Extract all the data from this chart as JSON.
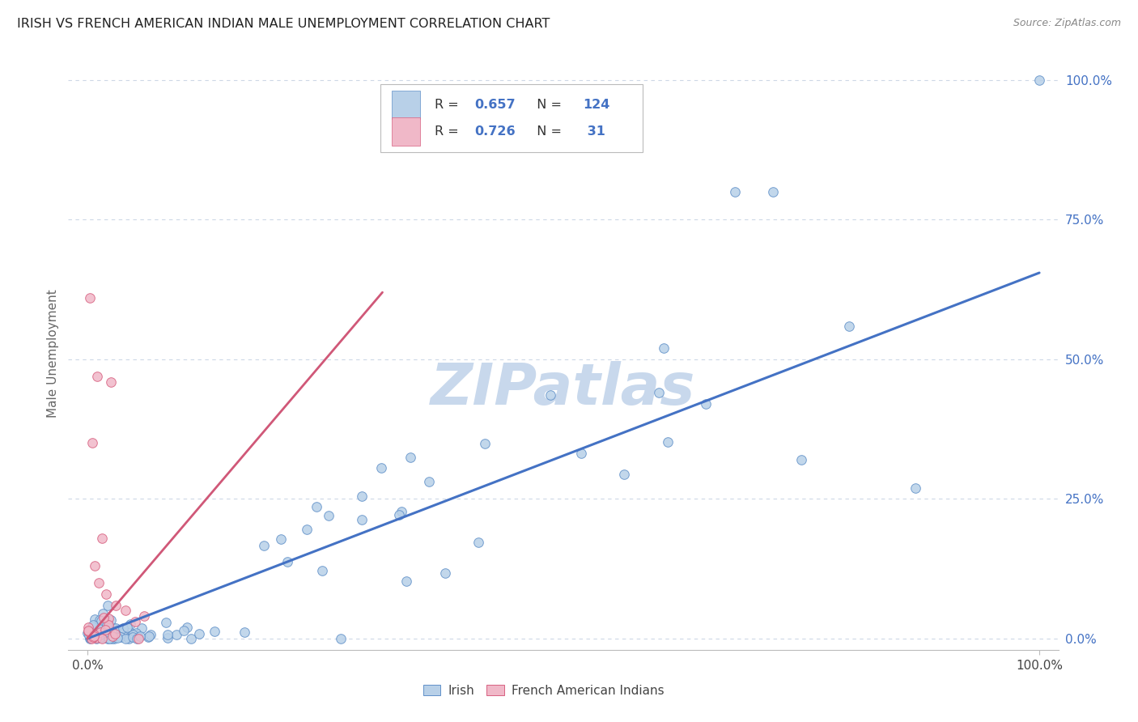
{
  "title": "IRISH VS FRENCH AMERICAN INDIAN MALE UNEMPLOYMENT CORRELATION CHART",
  "source_text": "Source: ZipAtlas.com",
  "ylabel": "Male Unemployment",
  "legend_labels": [
    "Irish",
    "French American Indians"
  ],
  "legend_R": [
    0.657,
    0.726
  ],
  "legend_N": [
    124,
    31
  ],
  "irish_fill_color": "#b8d0e8",
  "french_fill_color": "#f0b8c8",
  "irish_edge_color": "#6090c8",
  "french_edge_color": "#d86080",
  "irish_line_color": "#4472C4",
  "french_line_color": "#d05878",
  "legend_R_color": "#4472C4",
  "watermark": "ZIPatlas",
  "watermark_color": "#c8d8ec",
  "background_color": "#ffffff",
  "grid_color": "#c8d4e4",
  "right_tick_color": "#4472C4",
  "title_color": "#222222",
  "source_color": "#888888",
  "ylabel_color": "#666666",
  "xtick_color": "#444444",
  "grid_yticks": [
    0.0,
    0.25,
    0.5,
    0.75,
    1.0
  ],
  "grid_ytick_labels": [
    "0.0%",
    "25.0%",
    "50.0%",
    "75.0%",
    "100.0%"
  ],
  "xlim": [
    0.0,
    1.0
  ],
  "ylim": [
    0.0,
    1.0
  ],
  "irish_line_x0": 0.0,
  "irish_line_y0": 0.0,
  "irish_line_x1": 1.0,
  "irish_line_y1": 0.655,
  "french_line_x0": 0.0,
  "french_line_y0": 0.0,
  "french_line_x1": 0.31,
  "french_line_y1": 0.62,
  "scatter_size": 70,
  "scatter_alpha": 0.85,
  "scatter_linewidth": 0.7
}
